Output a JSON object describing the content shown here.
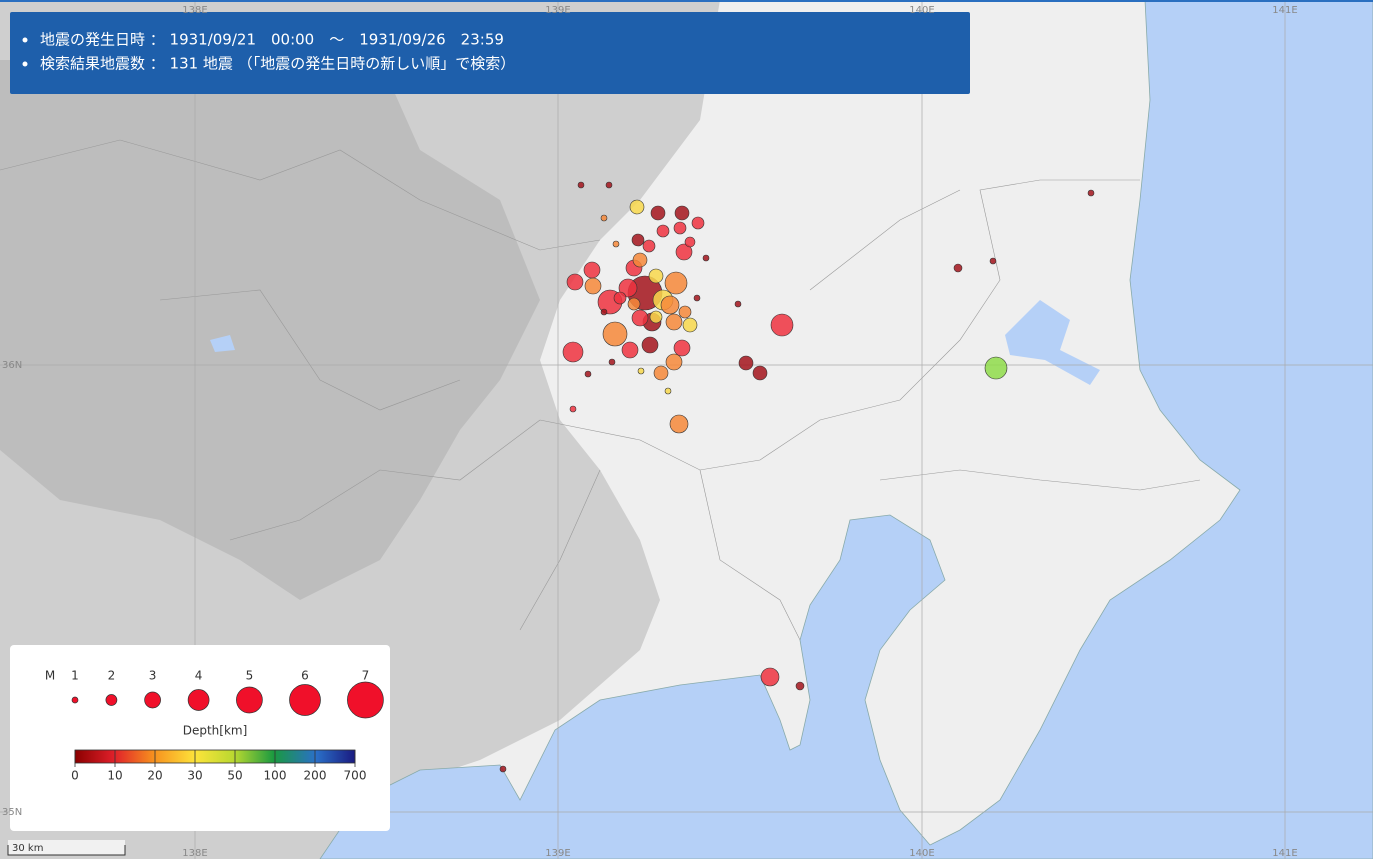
{
  "header": {
    "items": [
      "地震の発生日時 ： 1931/09/21　00:00　～　1931/09/26　23:59",
      "検索結果地震数 ： 131 地震 （「地震の発生日時の新しい順」で検索）"
    ]
  },
  "legend": {
    "magnitude_label": "M",
    "magnitudes": [
      1,
      2,
      3,
      4,
      5,
      6,
      7
    ],
    "depth_label": "Depth[km]",
    "depth_ticks": [
      0,
      10,
      20,
      30,
      50,
      100,
      200,
      700
    ]
  },
  "scale": "30 km",
  "graticule": {
    "longitudes": [
      "138E",
      "139E",
      "140E",
      "141E"
    ],
    "latitudes": [
      "36N",
      "35N"
    ]
  }
}
